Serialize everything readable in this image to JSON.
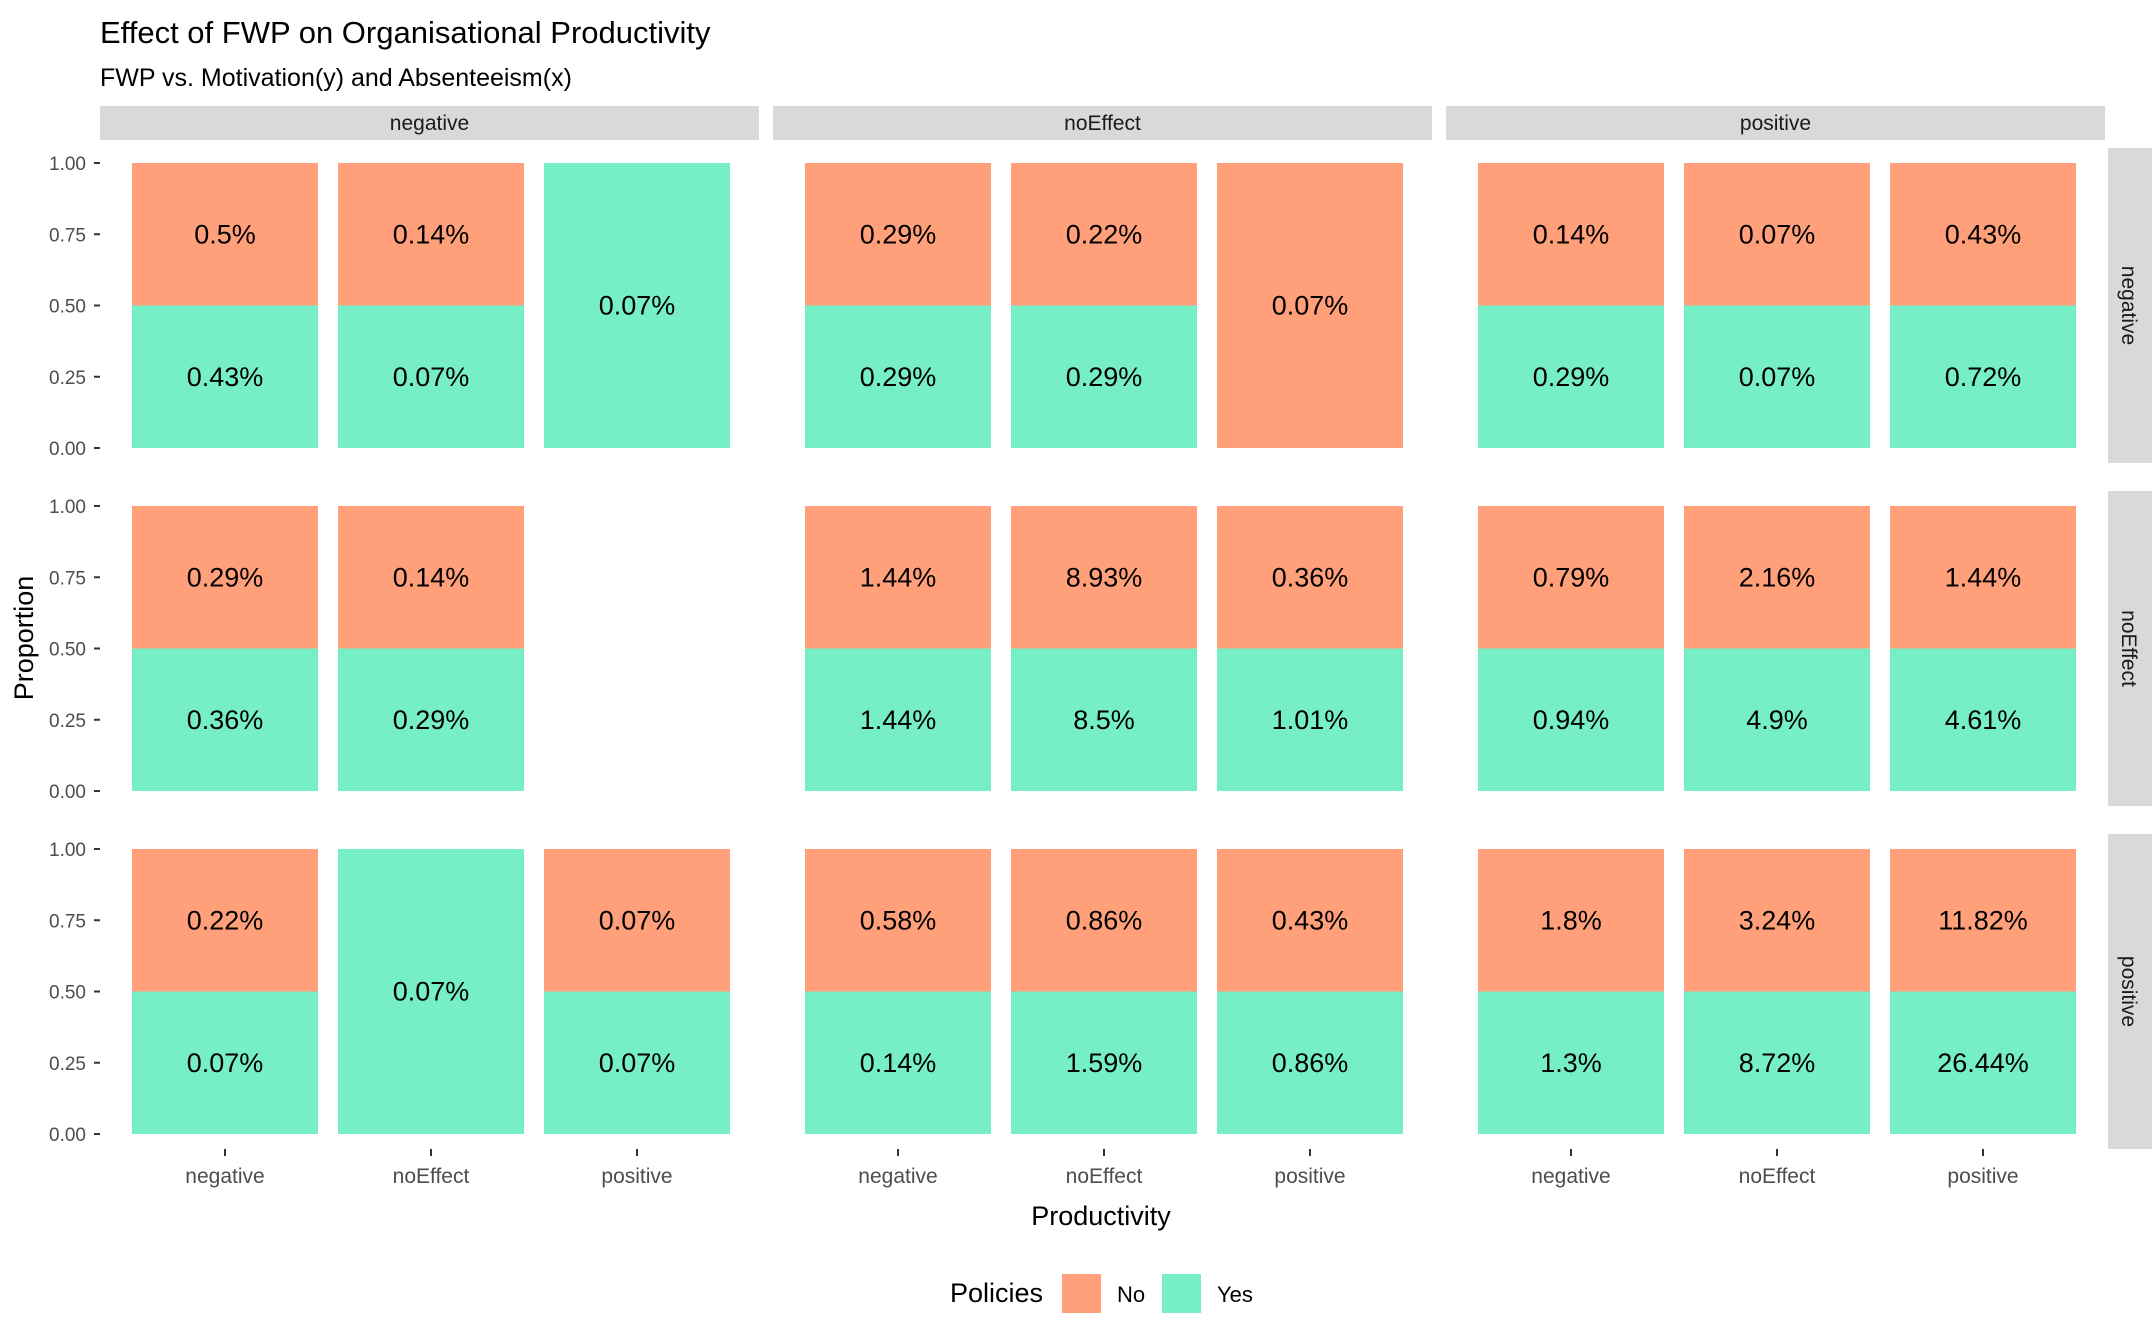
{
  "chart_data": {
    "type": "bar",
    "title": "Effect of FWP on Organisational Productivity",
    "subtitle": "FWP vs. Motivation(y) and Absenteeism(x)",
    "xlabel": "Productivity",
    "ylabel": "Proportion",
    "ylim": [
      0,
      1
    ],
    "y_ticks": [
      "0.00",
      "0.25",
      "0.50",
      "0.75",
      "1.00"
    ],
    "categories": [
      "negative",
      "noEffect",
      "positive"
    ],
    "col_facets": [
      "negative",
      "noEffect",
      "positive"
    ],
    "row_facets": [
      "negative",
      "noEffect",
      "positive"
    ],
    "legend": {
      "title": "Policies",
      "position": "bottom",
      "items": [
        {
          "name": "No",
          "color": "#FFA07A"
        },
        {
          "name": "Yes",
          "color": "#76EEC6"
        }
      ]
    },
    "panels": [
      {
        "row": "negative",
        "col": "negative",
        "bars": [
          {
            "x": "negative",
            "no": "0.5%",
            "yes": "0.43%",
            "no_prop": 0.5,
            "yes_prop": 0.5
          },
          {
            "x": "noEffect",
            "no": "0.14%",
            "yes": "0.07%",
            "no_prop": 0.5,
            "yes_prop": 0.5
          },
          {
            "x": "positive",
            "no": null,
            "yes": "0.07%",
            "no_prop": 0,
            "yes_prop": 1
          }
        ]
      },
      {
        "row": "negative",
        "col": "noEffect",
        "bars": [
          {
            "x": "negative",
            "no": "0.29%",
            "yes": "0.29%",
            "no_prop": 0.5,
            "yes_prop": 0.5
          },
          {
            "x": "noEffect",
            "no": "0.22%",
            "yes": "0.29%",
            "no_prop": 0.5,
            "yes_prop": 0.5
          },
          {
            "x": "positive",
            "no": "0.07%",
            "yes": null,
            "no_prop": 1,
            "yes_prop": 0
          }
        ]
      },
      {
        "row": "negative",
        "col": "positive",
        "bars": [
          {
            "x": "negative",
            "no": "0.14%",
            "yes": "0.29%",
            "no_prop": 0.5,
            "yes_prop": 0.5
          },
          {
            "x": "noEffect",
            "no": "0.07%",
            "yes": "0.07%",
            "no_prop": 0.5,
            "yes_prop": 0.5
          },
          {
            "x": "positive",
            "no": "0.43%",
            "yes": "0.72%",
            "no_prop": 0.5,
            "yes_prop": 0.5
          }
        ]
      },
      {
        "row": "noEffect",
        "col": "negative",
        "bars": [
          {
            "x": "negative",
            "no": "0.29%",
            "yes": "0.36%",
            "no_prop": 0.5,
            "yes_prop": 0.5
          },
          {
            "x": "noEffect",
            "no": "0.14%",
            "yes": "0.29%",
            "no_prop": 0.5,
            "yes_prop": 0.5
          }
        ]
      },
      {
        "row": "noEffect",
        "col": "noEffect",
        "bars": [
          {
            "x": "negative",
            "no": "1.44%",
            "yes": "1.44%",
            "no_prop": 0.5,
            "yes_prop": 0.5
          },
          {
            "x": "noEffect",
            "no": "8.93%",
            "yes": "8.5%",
            "no_prop": 0.5,
            "yes_prop": 0.5
          },
          {
            "x": "positive",
            "no": "0.36%",
            "yes": "1.01%",
            "no_prop": 0.5,
            "yes_prop": 0.5
          }
        ]
      },
      {
        "row": "noEffect",
        "col": "positive",
        "bars": [
          {
            "x": "negative",
            "no": "0.79%",
            "yes": "0.94%",
            "no_prop": 0.5,
            "yes_prop": 0.5
          },
          {
            "x": "noEffect",
            "no": "2.16%",
            "yes": "4.9%",
            "no_prop": 0.5,
            "yes_prop": 0.5
          },
          {
            "x": "positive",
            "no": "1.44%",
            "yes": "4.61%",
            "no_prop": 0.5,
            "yes_prop": 0.5
          }
        ]
      },
      {
        "row": "positive",
        "col": "negative",
        "bars": [
          {
            "x": "negative",
            "no": "0.22%",
            "yes": "0.07%",
            "no_prop": 0.5,
            "yes_prop": 0.5
          },
          {
            "x": "noEffect",
            "no": null,
            "yes": "0.07%",
            "no_prop": 0,
            "yes_prop": 1
          },
          {
            "x": "positive",
            "no": "0.07%",
            "yes": "0.07%",
            "no_prop": 0.5,
            "yes_prop": 0.5
          }
        ]
      },
      {
        "row": "positive",
        "col": "noEffect",
        "bars": [
          {
            "x": "negative",
            "no": "0.58%",
            "yes": "0.14%",
            "no_prop": 0.5,
            "yes_prop": 0.5
          },
          {
            "x": "noEffect",
            "no": "0.86%",
            "yes": "1.59%",
            "no_prop": 0.5,
            "yes_prop": 0.5
          },
          {
            "x": "positive",
            "no": "0.43%",
            "yes": "0.86%",
            "no_prop": 0.5,
            "yes_prop": 0.5
          }
        ]
      },
      {
        "row": "positive",
        "col": "positive",
        "bars": [
          {
            "x": "negative",
            "no": "1.8%",
            "yes": "1.3%",
            "no_prop": 0.5,
            "yes_prop": 0.5
          },
          {
            "x": "noEffect",
            "no": "3.24%",
            "yes": "8.72%",
            "no_prop": 0.5,
            "yes_prop": 0.5
          },
          {
            "x": "positive",
            "no": "11.82%",
            "yes": "26.44%",
            "no_prop": 0.5,
            "yes_prop": 0.5
          }
        ]
      }
    ]
  }
}
